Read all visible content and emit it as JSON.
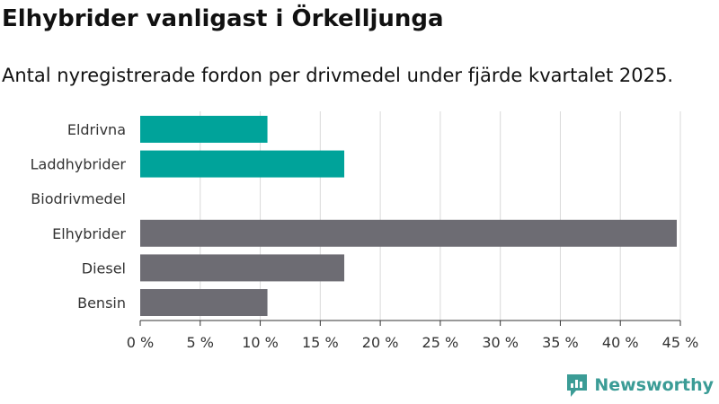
{
  "title": "Elhybrider vanligast i Örkelljunga",
  "subtitle": "Antal nyregistrerade fordon per drivmedel under fjärde kvartalet 2025.",
  "brand": {
    "name": "Newsworthy",
    "color": "#3b9c96"
  },
  "colors": {
    "highlight": "#00a39a",
    "other": "#6d6c73",
    "grid": "#d9d9d9",
    "axis": "#333333"
  },
  "chart_data": {
    "type": "bar",
    "orientation": "horizontal",
    "categories": [
      "Eldrivna",
      "Laddhybrider",
      "Biodrivmedel",
      "Elhybrider",
      "Diesel",
      "Bensin"
    ],
    "values": [
      10.6,
      17.0,
      0,
      44.7,
      17.0,
      10.6
    ],
    "highlighted": [
      true,
      true,
      true,
      false,
      false,
      false
    ],
    "xlim": [
      0,
      45
    ],
    "ticks": [
      0,
      5,
      10,
      15,
      20,
      25,
      30,
      35,
      40,
      45
    ],
    "tick_labels": [
      "0 %",
      "5 %",
      "10 %",
      "15 %",
      "20 %",
      "25 %",
      "30 %",
      "35 %",
      "40 %",
      "45 %"
    ],
    "xlabel": "",
    "ylabel": "",
    "grid": true
  }
}
